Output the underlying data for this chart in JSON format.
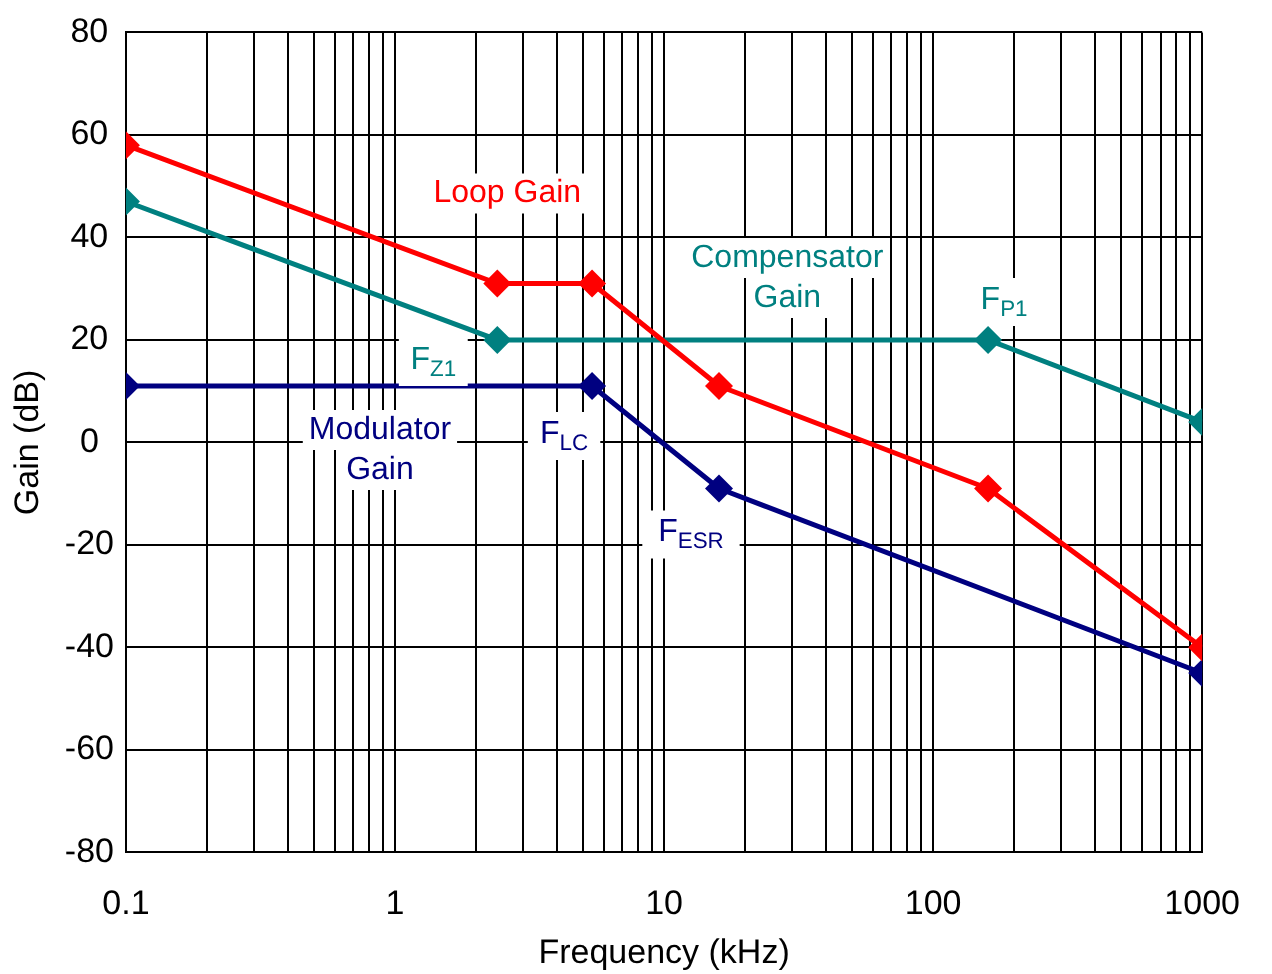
{
  "chart_data": {
    "type": "line",
    "xlabel": "Frequency (kHz)",
    "ylabel": "Gain (dB)",
    "log": "x",
    "grid": true,
    "marker": "diamond",
    "legend": false,
    "xlim": [
      0.1,
      1000
    ],
    "ylim": [
      -80,
      80
    ],
    "xticks": [
      0.1,
      {
        "value": 0.2,
        "label": null
      },
      {
        "value": 0.3,
        "label": null
      },
      {
        "value": 0.4,
        "label": null
      },
      {
        "value": 0.5,
        "label": null
      },
      {
        "value": 0.6,
        "label": null
      },
      {
        "value": 0.7,
        "label": null
      },
      {
        "value": 0.8,
        "label": null
      },
      {
        "value": 0.9,
        "label": null
      },
      1,
      {
        "value": 2,
        "label": null
      },
      {
        "value": 3,
        "label": null
      },
      {
        "value": 4,
        "label": null
      },
      {
        "value": 5,
        "label": null
      },
      {
        "value": 6,
        "label": null
      },
      {
        "value": 7,
        "label": null
      },
      {
        "value": 8,
        "label": null
      },
      {
        "value": 9,
        "label": null
      },
      10,
      {
        "value": 20,
        "label": null
      },
      {
        "value": 30,
        "label": null
      },
      {
        "value": 40,
        "label": null
      },
      {
        "value": 50,
        "label": null
      },
      {
        "value": 60,
        "label": null
      },
      {
        "value": 70,
        "label": null
      },
      {
        "value": 80,
        "label": null
      },
      {
        "value": 90,
        "label": null
      },
      100,
      {
        "value": 200,
        "label": null
      },
      {
        "value": 300,
        "label": null
      },
      {
        "value": 400,
        "label": null
      },
      {
        "value": 500,
        "label": null
      },
      {
        "value": 600,
        "label": null
      },
      {
        "value": 700,
        "label": null
      },
      {
        "value": 800,
        "label": null
      },
      {
        "value": 900,
        "label": null
      },
      1000
    ],
    "yticks": [
      -80,
      -60,
      -40,
      -20,
      0,
      20,
      40,
      60,
      80
    ],
    "series": [
      {
        "name": "Loop Gain",
        "color": "#ff0000",
        "x": [
          0.1,
          2.4,
          5.4,
          16,
          160,
          1000
        ],
        "values": [
          58,
          31,
          31,
          11,
          -9,
          -40
        ]
      },
      {
        "name": "Compensator Gain",
        "color": "#008080",
        "x": [
          0.1,
          2.4,
          160,
          1000
        ],
        "values": [
          47,
          20,
          20,
          4
        ]
      },
      {
        "name": "Modulator Gain",
        "color": "#000080",
        "x": [
          0.1,
          5.4,
          16,
          1000
        ],
        "values": [
          11,
          11,
          -9,
          -45
        ]
      }
    ],
    "annotations": [
      {
        "text": "F$_{Z1}$",
        "x": 2.4,
        "y": 20
      },
      {
        "text": "F$_{P1}$",
        "x": 160,
        "y": 20
      },
      {
        "text": "F$_{LC}$",
        "x": 5.4,
        "y": 11
      },
      {
        "text": "F$_{ESR}$",
        "x": 16,
        "y": -9
      }
    ]
  }
}
